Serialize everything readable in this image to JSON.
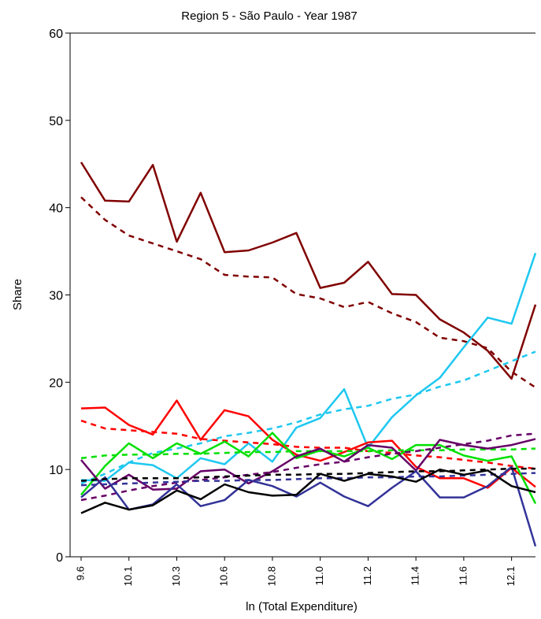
{
  "chart_data": {
    "type": "line",
    "title": "Region 5 - São Paulo - Year 1987",
    "xlabel": "ln (Total Expenditure)",
    "ylabel": "Share",
    "ylim": [
      0,
      60
    ],
    "yticks": [
      "0",
      "10",
      "20",
      "30",
      "40",
      "50",
      "60"
    ],
    "xticks": [
      "9.6",
      "10.1",
      "10.3",
      "10.6",
      "10.8",
      "11.0",
      "11.2",
      "11.4",
      "11.6",
      "12.1"
    ],
    "grid": false,
    "series": [
      {
        "color": "#800000",
        "style": "solid",
        "values": [
          45.2,
          40.8,
          40.7,
          44.9,
          36.1,
          41.7,
          34.9,
          35.1,
          36.0,
          37.1,
          30.8,
          31.4,
          33.8,
          30.1,
          30.0,
          27.2,
          25.7,
          23.6,
          20.4,
          28.9
        ]
      },
      {
        "color": "#800000",
        "style": "dashed",
        "values": [
          41.2,
          38.6,
          36.8,
          35.9,
          35.0,
          34.1,
          32.3,
          32.1,
          32.0,
          30.1,
          29.6,
          28.6,
          29.2,
          27.9,
          26.9,
          25.1,
          24.7,
          23.9,
          21.2,
          19.4
        ]
      },
      {
        "color": "#1ec8f0",
        "style": "solid",
        "values": [
          8.8,
          8.7,
          10.8,
          10.5,
          9.0,
          11.3,
          10.6,
          13.0,
          10.9,
          14.8,
          15.9,
          19.2,
          12.5,
          16.0,
          18.5,
          20.5,
          24.0,
          27.4,
          26.7,
          34.8
        ]
      },
      {
        "color": "#1ec8f0",
        "style": "dashed",
        "values": [
          8.4,
          9.5,
          10.8,
          11.9,
          12.4,
          13.0,
          13.8,
          14.2,
          14.7,
          15.4,
          16.3,
          16.9,
          17.3,
          18.1,
          18.6,
          19.5,
          20.2,
          21.3,
          22.4,
          23.5
        ]
      },
      {
        "color": "#ff0000",
        "style": "solid",
        "values": [
          17.0,
          17.1,
          15.1,
          14.0,
          17.9,
          13.4,
          16.8,
          16.1,
          13.4,
          11.7,
          11.0,
          12.0,
          13.1,
          13.3,
          10.3,
          9.0,
          9.0,
          7.9,
          10.2,
          8.0
        ]
      },
      {
        "color": "#ff0000",
        "style": "dashed",
        "values": [
          15.6,
          14.7,
          14.5,
          14.3,
          14.1,
          13.5,
          13.3,
          13.1,
          12.9,
          12.6,
          12.5,
          12.5,
          12.1,
          11.9,
          11.6,
          11.4,
          11.1,
          10.8,
          10.4,
          10.1
        ]
      },
      {
        "color": "#00e000",
        "style": "solid",
        "values": [
          7.1,
          10.4,
          13.0,
          11.3,
          13.0,
          11.8,
          13.2,
          11.5,
          14.2,
          11.3,
          12.2,
          11.5,
          12.5,
          11.2,
          12.8,
          12.8,
          11.6,
          11.0,
          11.5,
          6.1
        ]
      },
      {
        "color": "#00e000",
        "style": "dashed",
        "values": [
          11.3,
          11.6,
          11.7,
          11.7,
          11.8,
          11.8,
          11.9,
          12.0,
          12.0,
          12.1,
          12.1,
          12.1,
          12.1,
          12.2,
          12.2,
          12.2,
          12.3,
          12.3,
          12.3,
          12.4
        ]
      },
      {
        "color": "#660066",
        "style": "solid",
        "values": [
          11.1,
          7.8,
          9.4,
          7.7,
          7.8,
          9.8,
          10.0,
          8.4,
          9.8,
          11.5,
          12.4,
          10.9,
          12.8,
          12.5,
          9.9,
          13.4,
          12.8,
          12.4,
          12.8,
          13.5
        ]
      },
      {
        "color": "#660066",
        "style": "dashed",
        "values": [
          6.5,
          7.0,
          7.6,
          8.1,
          8.5,
          8.8,
          9.1,
          9.4,
          9.7,
          10.2,
          10.6,
          10.9,
          11.4,
          11.8,
          12.1,
          12.5,
          12.9,
          13.3,
          13.9,
          14.1
        ]
      },
      {
        "color": "#333399",
        "style": "solid",
        "values": [
          6.8,
          9.1,
          5.4,
          6.0,
          8.3,
          5.8,
          6.5,
          8.8,
          8.1,
          6.9,
          8.5,
          6.9,
          5.8,
          7.9,
          9.8,
          6.8,
          6.8,
          8.1,
          10.3,
          1.2
        ]
      },
      {
        "color": "#333399",
        "style": "dashed",
        "values": [
          8.2,
          8.3,
          8.4,
          8.5,
          8.6,
          8.7,
          8.7,
          8.8,
          8.8,
          8.9,
          9.0,
          9.0,
          9.1,
          9.1,
          9.2,
          9.2,
          9.3,
          9.4,
          9.5,
          9.6
        ]
      },
      {
        "color": "#000000",
        "style": "solid",
        "values": [
          5.0,
          6.2,
          5.4,
          5.9,
          7.6,
          6.6,
          8.3,
          7.4,
          7.0,
          7.1,
          9.5,
          8.7,
          9.5,
          9.2,
          8.6,
          10.0,
          9.4,
          9.9,
          8.1,
          7.4
        ]
      },
      {
        "color": "#000000",
        "style": "dashed",
        "values": [
          8.7,
          8.9,
          9.0,
          9.0,
          9.0,
          9.1,
          9.2,
          9.3,
          9.4,
          9.4,
          9.5,
          9.5,
          9.6,
          9.7,
          9.8,
          9.8,
          9.9,
          10.0,
          10.1,
          10.1
        ]
      }
    ]
  }
}
